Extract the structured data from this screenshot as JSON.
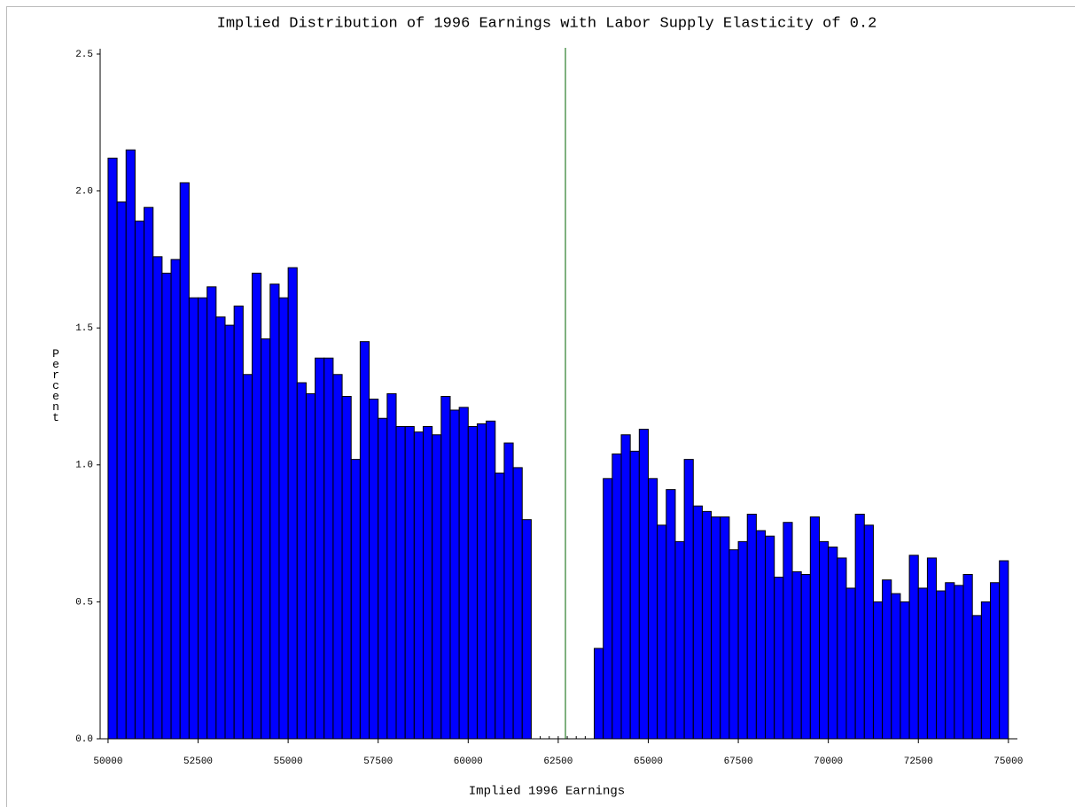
{
  "chart_data": {
    "type": "histogram",
    "title": "Implied Distribution of 1996 Earnings with Labor Supply Elasticity of 0.2",
    "x_label": "Implied 1996 Earnings",
    "y_label": "Percent",
    "color": "#0000ff",
    "bins": [
      50000,
      50250,
      50500,
      50750,
      51000,
      51250,
      51500,
      51750,
      52000,
      52250,
      52500,
      52750,
      53000,
      53250,
      53500,
      53750,
      54000,
      54250,
      54500,
      54750,
      55000,
      55250,
      55500,
      55750,
      56000,
      56250,
      56500,
      56750,
      57000,
      57250,
      57500,
      57750,
      58000,
      58250,
      58500,
      58750,
      59000,
      59250,
      59500,
      59750,
      60000,
      60250,
      60500,
      60750,
      61000,
      61250,
      61500,
      61750,
      62000,
      62250,
      62500,
      62750,
      63000,
      63250,
      63500,
      63750,
      64000,
      64250,
      64500,
      64750,
      65000,
      65250,
      65500,
      65750,
      66000,
      66250,
      66500,
      66750,
      67000,
      67250,
      67500,
      67750,
      68000,
      68250,
      68500,
      68750,
      69000,
      69250,
      69500,
      69750,
      70000,
      70250,
      70500,
      70750,
      71000,
      71250,
      71500,
      71750,
      72000,
      72250,
      72500,
      72750,
      73000,
      73250,
      73500,
      73750,
      74000,
      74250,
      74500,
      74750,
      75000
    ],
    "values": [
      2.12,
      1.96,
      2.15,
      1.89,
      1.94,
      1.76,
      1.7,
      1.75,
      2.03,
      1.61,
      1.61,
      1.65,
      1.54,
      1.51,
      1.58,
      1.33,
      1.7,
      1.46,
      1.66,
      1.61,
      1.72,
      1.3,
      1.26,
      1.39,
      1.39,
      1.33,
      1.25,
      1.02,
      1.45,
      1.24,
      1.17,
      1.26,
      1.14,
      1.14,
      1.12,
      1.14,
      1.11,
      1.25,
      1.2,
      1.21,
      1.14,
      1.15,
      1.16,
      0.97,
      1.08,
      0.99,
      0.8,
      0,
      0,
      0,
      0,
      0,
      0,
      0,
      0.33,
      0.95,
      1.04,
      1.11,
      1.05,
      1.13,
      0.95,
      0.78,
      0.91,
      0.72,
      1.02,
      0.85,
      0.83,
      0.81,
      0.81,
      0.69,
      0.72,
      0.82,
      0.76,
      0.74,
      0.59,
      0.79,
      0.61,
      0.6,
      0.81,
      0.72,
      0.7,
      0.66,
      0.55,
      0.82,
      0.78,
      0.5,
      0.58,
      0.53,
      0.5,
      0.67,
      0.55,
      0.66,
      0.54,
      0.57,
      0.56,
      0.6,
      0.45,
      0.5,
      0.57,
      0.65
    ],
    "reference_line": {
      "value": 62700,
      "color": "#006400"
    },
    "xlim": [
      49780,
      75250
    ],
    "xticks": [
      50000,
      52500,
      55000,
      57500,
      60000,
      62500,
      65000,
      67500,
      70000,
      72500,
      75000
    ],
    "ylim": [
      0,
      2.5
    ],
    "yticks": [
      {
        "value": 0,
        "label": "0.0"
      },
      0.5,
      {
        "value": 1,
        "label": "1.0"
      },
      1.5,
      {
        "value": 2,
        "label": "2.0"
      },
      2.5
    ]
  }
}
